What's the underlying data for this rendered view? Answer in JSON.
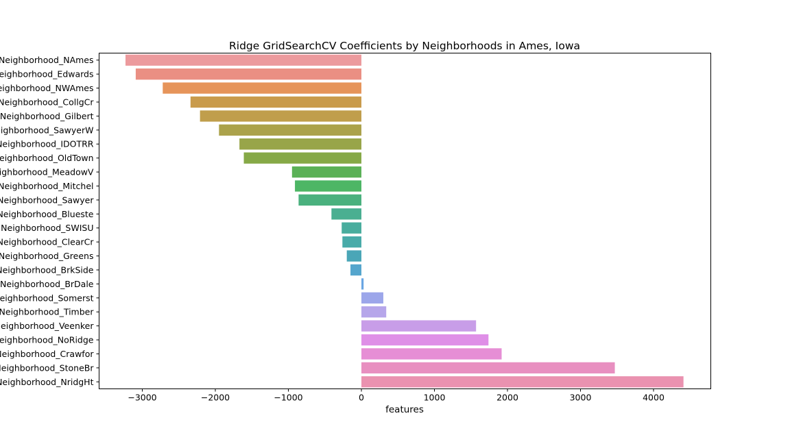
{
  "chart_data": {
    "type": "bar",
    "orientation": "horizontal",
    "title": "Ridge GridSearchCV Coefficients by Neighborhoods in Ames, Iowa",
    "xlabel": "features",
    "ylabel": "",
    "xlim": [
      -3600,
      4800
    ],
    "xticks": [
      -3000,
      -2000,
      -1000,
      0,
      1000,
      2000,
      3000,
      4000
    ],
    "xtick_labels": [
      "−3000",
      "−2000",
      "−1000",
      "0",
      "1000",
      "2000",
      "3000",
      "4000"
    ],
    "grid": false,
    "categories": [
      "Neighborhood_NAmes",
      "Neighborhood_Edwards",
      "Neighborhood_NWAmes",
      "Neighborhood_CollgCr",
      "Neighborhood_Gilbert",
      "Neighborhood_SawyerW",
      "Neighborhood_IDOTRR",
      "Neighborhood_OldTown",
      "Neighborhood_MeadowV",
      "Neighborhood_Mitchel",
      "Neighborhood_Sawyer",
      "Neighborhood_Blueste",
      "Neighborhood_SWISU",
      "Neighborhood_ClearCr",
      "Neighborhood_Greens",
      "Neighborhood_BrkSide",
      "Neighborhood_BrDale",
      "Neighborhood_Somerst",
      "Neighborhood_Timber",
      "Neighborhood_Veenker",
      "Neighborhood_NoRidge",
      "Neighborhood_Crawfor",
      "Neighborhood_StoneBr",
      "Neighborhood_NridgHt"
    ],
    "values": [
      -3230,
      -3090,
      -2720,
      -2340,
      -2210,
      -1950,
      -1670,
      -1610,
      -950,
      -910,
      -860,
      -410,
      -270,
      -260,
      -200,
      -150,
      30,
      300,
      340,
      1570,
      1740,
      1920,
      3470,
      4410
    ],
    "colors": [
      "#ec9a9d",
      "#ea8f83",
      "#e6945a",
      "#c99b4c",
      "#c09e4c",
      "#aba24b",
      "#98a549",
      "#86a947",
      "#5bb157",
      "#4db665",
      "#4ab17e",
      "#4aaf91",
      "#49ad9e",
      "#49aba9",
      "#4aa6b7",
      "#55a6cd",
      "#6aa6e3",
      "#9ca6ea",
      "#b6a6ea",
      "#c89de8",
      "#df8fe7",
      "#e68ed5",
      "#e88fc0",
      "#ea92b0"
    ]
  }
}
